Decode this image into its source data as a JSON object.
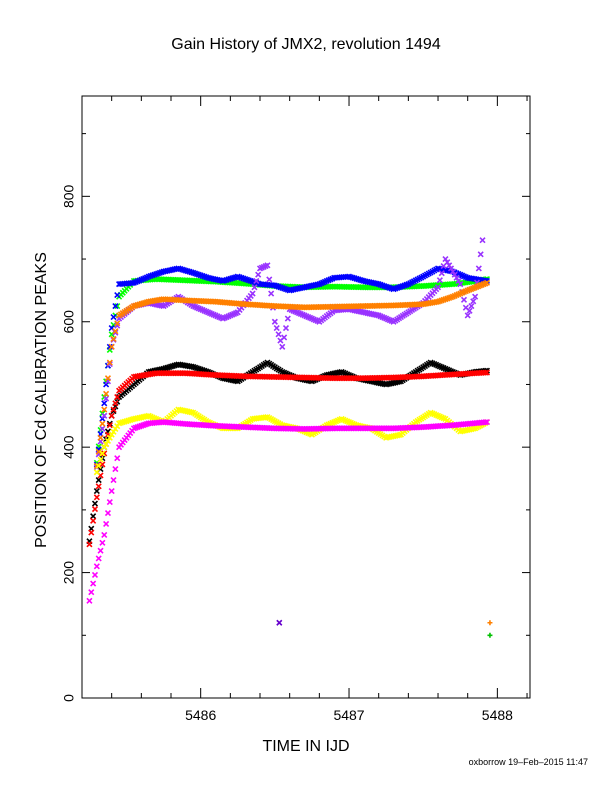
{
  "chart_data": {
    "type": "scatter",
    "title": "Gain History of JMX2, revolution 1494",
    "xlabel": "TIME IN IJD",
    "ylabel": "POSITION OF Cd CALIBRATION PEAKS",
    "xlim": [
      5485.2,
      5488.22
    ],
    "ylim": [
      0,
      960
    ],
    "xticks": [
      5486,
      5487,
      5488
    ],
    "xtick_labels": [
      "5486",
      "5487",
      "5488"
    ],
    "yticks": [
      0,
      200,
      400,
      600,
      800
    ],
    "ytick_labels": [
      "0",
      "200",
      "400",
      "600",
      "800"
    ],
    "grid": false,
    "legend": "none",
    "series": [
      {
        "color": "#00ff00",
        "marker": "x",
        "points": [
          [
            5485.3,
            375
          ],
          [
            5485.35,
            480
          ],
          [
            5485.4,
            580
          ],
          [
            5485.45,
            640
          ],
          [
            5485.55,
            665
          ],
          [
            5485.7,
            668
          ],
          [
            5485.9,
            666
          ],
          [
            5486.1,
            664
          ],
          [
            5486.3,
            661
          ],
          [
            5486.5,
            657
          ],
          [
            5486.7,
            655
          ],
          [
            5486.9,
            656
          ],
          [
            5487.1,
            655
          ],
          [
            5487.3,
            655
          ],
          [
            5487.5,
            657
          ],
          [
            5487.7,
            660
          ],
          [
            5487.8,
            663
          ],
          [
            5487.93,
            668
          ]
        ]
      },
      {
        "color": "#0000ff",
        "marker": "x",
        "points": [
          [
            5485.3,
            372
          ],
          [
            5485.35,
            470
          ],
          [
            5485.4,
            590
          ],
          [
            5485.45,
            660
          ],
          [
            5485.55,
            662
          ],
          [
            5485.65,
            672
          ],
          [
            5485.75,
            680
          ],
          [
            5485.85,
            685
          ],
          [
            5485.95,
            678
          ],
          [
            5486.05,
            670
          ],
          [
            5486.15,
            665
          ],
          [
            5486.25,
            672
          ],
          [
            5486.4,
            660
          ],
          [
            5486.5,
            658
          ],
          [
            5486.6,
            650
          ],
          [
            5486.7,
            655
          ],
          [
            5486.8,
            660
          ],
          [
            5486.9,
            670
          ],
          [
            5487.0,
            672
          ],
          [
            5487.1,
            665
          ],
          [
            5487.2,
            660
          ],
          [
            5487.3,
            652
          ],
          [
            5487.4,
            660
          ],
          [
            5487.5,
            672
          ],
          [
            5487.6,
            685
          ],
          [
            5487.7,
            680
          ],
          [
            5487.8,
            670
          ],
          [
            5487.93,
            665
          ]
        ]
      },
      {
        "color": "#9933ff",
        "marker": "x",
        "points": [
          [
            5485.3,
            368
          ],
          [
            5485.35,
            450
          ],
          [
            5485.4,
            560
          ],
          [
            5485.45,
            605
          ],
          [
            5485.55,
            625
          ],
          [
            5485.65,
            630
          ],
          [
            5485.75,
            625
          ],
          [
            5485.85,
            640
          ],
          [
            5485.95,
            625
          ],
          [
            5486.05,
            615
          ],
          [
            5486.15,
            605
          ],
          [
            5486.25,
            615
          ],
          [
            5486.35,
            645
          ],
          [
            5486.4,
            685
          ],
          [
            5486.45,
            690
          ],
          [
            5486.5,
            600
          ],
          [
            5486.55,
            560
          ],
          [
            5486.6,
            620
          ],
          [
            5486.7,
            610
          ],
          [
            5486.8,
            600
          ],
          [
            5486.9,
            618
          ],
          [
            5487.0,
            620
          ],
          [
            5487.1,
            615
          ],
          [
            5487.2,
            610
          ],
          [
            5487.3,
            600
          ],
          [
            5487.4,
            615
          ],
          [
            5487.5,
            630
          ],
          [
            5487.6,
            655
          ],
          [
            5487.65,
            700
          ],
          [
            5487.7,
            680
          ],
          [
            5487.75,
            660
          ],
          [
            5487.8,
            610
          ],
          [
            5487.85,
            640
          ],
          [
            5487.9,
            730
          ]
        ]
      },
      {
        "color": "#ff8000",
        "marker": "x",
        "points": [
          [
            5485.3,
            370
          ],
          [
            5485.35,
            460
          ],
          [
            5485.4,
            560
          ],
          [
            5485.45,
            610
          ],
          [
            5485.55,
            625
          ],
          [
            5485.65,
            632
          ],
          [
            5485.75,
            636
          ],
          [
            5485.9,
            634
          ],
          [
            5486.1,
            632
          ],
          [
            5486.3,
            628
          ],
          [
            5486.5,
            625
          ],
          [
            5486.7,
            623
          ],
          [
            5486.9,
            624
          ],
          [
            5487.1,
            625
          ],
          [
            5487.3,
            626
          ],
          [
            5487.5,
            628
          ],
          [
            5487.6,
            632
          ],
          [
            5487.7,
            640
          ],
          [
            5487.8,
            650
          ],
          [
            5487.93,
            662
          ]
        ]
      },
      {
        "color": "#000000",
        "marker": "x",
        "points": [
          [
            5485.25,
            250
          ],
          [
            5485.3,
            330
          ],
          [
            5485.35,
            400
          ],
          [
            5485.4,
            450
          ],
          [
            5485.45,
            480
          ],
          [
            5485.55,
            500
          ],
          [
            5485.65,
            520
          ],
          [
            5485.75,
            525
          ],
          [
            5485.85,
            532
          ],
          [
            5485.95,
            528
          ],
          [
            5486.05,
            520
          ],
          [
            5486.15,
            510
          ],
          [
            5486.25,
            505
          ],
          [
            5486.35,
            520
          ],
          [
            5486.45,
            535
          ],
          [
            5486.55,
            520
          ],
          [
            5486.65,
            510
          ],
          [
            5486.75,
            505
          ],
          [
            5486.85,
            515
          ],
          [
            5486.95,
            520
          ],
          [
            5487.05,
            510
          ],
          [
            5487.15,
            505
          ],
          [
            5487.25,
            500
          ],
          [
            5487.35,
            505
          ],
          [
            5487.45,
            520
          ],
          [
            5487.55,
            535
          ],
          [
            5487.65,
            525
          ],
          [
            5487.75,
            515
          ],
          [
            5487.85,
            520
          ],
          [
            5487.93,
            522
          ]
        ]
      },
      {
        "color": "#ff0000",
        "marker": "x",
        "points": [
          [
            5485.25,
            245
          ],
          [
            5485.3,
            320
          ],
          [
            5485.35,
            390
          ],
          [
            5485.4,
            450
          ],
          [
            5485.45,
            490
          ],
          [
            5485.55,
            512
          ],
          [
            5485.7,
            518
          ],
          [
            5485.9,
            518
          ],
          [
            5486.1,
            515
          ],
          [
            5486.3,
            513
          ],
          [
            5486.5,
            512
          ],
          [
            5486.7,
            511
          ],
          [
            5486.9,
            510
          ],
          [
            5487.1,
            510
          ],
          [
            5487.3,
            511
          ],
          [
            5487.5,
            513
          ],
          [
            5487.7,
            516
          ],
          [
            5487.93,
            519
          ]
        ]
      },
      {
        "color": "#ffff00",
        "marker": "x",
        "points": [
          [
            5485.3,
            360
          ],
          [
            5485.35,
            400
          ],
          [
            5485.4,
            420
          ],
          [
            5485.45,
            438
          ],
          [
            5485.55,
            445
          ],
          [
            5485.65,
            450
          ],
          [
            5485.75,
            440
          ],
          [
            5485.85,
            460
          ],
          [
            5485.95,
            455
          ],
          [
            5486.05,
            440
          ],
          [
            5486.15,
            430
          ],
          [
            5486.25,
            430
          ],
          [
            5486.35,
            445
          ],
          [
            5486.45,
            448
          ],
          [
            5486.55,
            435
          ],
          [
            5486.65,
            430
          ],
          [
            5486.75,
            420
          ],
          [
            5486.85,
            435
          ],
          [
            5486.95,
            445
          ],
          [
            5487.05,
            435
          ],
          [
            5487.15,
            430
          ],
          [
            5487.25,
            415
          ],
          [
            5487.35,
            420
          ],
          [
            5487.45,
            440
          ],
          [
            5487.55,
            455
          ],
          [
            5487.65,
            445
          ],
          [
            5487.75,
            425
          ],
          [
            5487.85,
            430
          ],
          [
            5487.93,
            440
          ]
        ]
      },
      {
        "color": "#ff00ff",
        "marker": "x",
        "points": [
          [
            5485.25,
            155
          ],
          [
            5485.3,
            210
          ],
          [
            5485.35,
            260
          ],
          [
            5485.4,
            330
          ],
          [
            5485.45,
            400
          ],
          [
            5485.55,
            430
          ],
          [
            5485.65,
            438
          ],
          [
            5485.75,
            440
          ],
          [
            5485.9,
            437
          ],
          [
            5486.1,
            434
          ],
          [
            5486.3,
            432
          ],
          [
            5486.5,
            430
          ],
          [
            5486.7,
            429
          ],
          [
            5486.9,
            430
          ],
          [
            5487.1,
            430
          ],
          [
            5487.3,
            430
          ],
          [
            5487.5,
            432
          ],
          [
            5487.7,
            435
          ],
          [
            5487.93,
            440
          ]
        ]
      },
      {
        "color": "#6600cc",
        "marker": "x",
        "points": [
          [
            5486.53,
            120
          ]
        ]
      },
      {
        "color": "#ff8000",
        "marker": "+",
        "points": [
          [
            5487.95,
            120
          ]
        ]
      },
      {
        "color": "#00c000",
        "marker": "+",
        "points": [
          [
            5487.95,
            100
          ]
        ]
      }
    ]
  },
  "footer": "oxborrow 19–Feb–2015 11:47"
}
